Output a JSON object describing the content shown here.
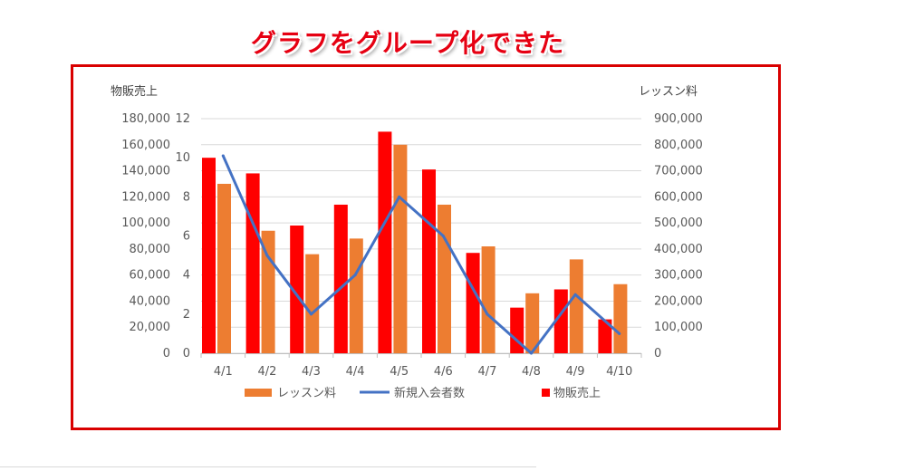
{
  "headline": "グラフをグループ化できた",
  "chart_data": {
    "type": "bar",
    "categories": [
      "4/1",
      "4/2",
      "4/3",
      "4/4",
      "4/5",
      "4/6",
      "4/7",
      "4/8",
      "4/9",
      "4/10"
    ],
    "series": [
      {
        "name": "物販売上",
        "type": "bar",
        "axis": "left",
        "color": "#ff0000",
        "values": [
          150000,
          138000,
          98000,
          114000,
          170000,
          141000,
          77000,
          35000,
          49000,
          26000
        ]
      },
      {
        "name": "レッスン料",
        "type": "bar",
        "axis": "right",
        "color": "#ed7d31",
        "values": [
          650000,
          470000,
          380000,
          440000,
          800000,
          570000,
          410000,
          230000,
          360000,
          265000
        ]
      },
      {
        "name": "新規入会者数",
        "type": "line",
        "axis": "secondary-left",
        "color": "#4472c4",
        "values": [
          10.1,
          5.0,
          2.0,
          4.0,
          8.0,
          6.0,
          2.0,
          0,
          3.0,
          1.0
        ]
      }
    ],
    "axes": {
      "left": {
        "title": "物販売上",
        "min": 0,
        "max": 180000,
        "ticks": [
          "0",
          "20,000",
          "40,000",
          "60,000",
          "80,000",
          "100,000",
          "120,000",
          "140,000",
          "160,000",
          "180,000"
        ]
      },
      "secondary_left": {
        "min": 0,
        "max": 12,
        "ticks": [
          "0",
          "2",
          "4",
          "6",
          "8",
          "10",
          "12"
        ]
      },
      "right": {
        "title": "レッスン料",
        "min": 0,
        "max": 900000,
        "ticks": [
          "0",
          "100,000",
          "200,000",
          "300,000",
          "400,000",
          "500,000",
          "600,000",
          "700,000",
          "800,000",
          "900,000"
        ]
      }
    },
    "legend": {
      "placement": "bottom",
      "entries": [
        {
          "label": "レッスン料",
          "color": "#ed7d31",
          "kind": "bar"
        },
        {
          "label": "新規入会者数",
          "color": "#4472c4",
          "kind": "line"
        },
        {
          "label": "物販売上",
          "color": "#ff0000",
          "kind": "bar"
        }
      ]
    },
    "grid": true
  }
}
